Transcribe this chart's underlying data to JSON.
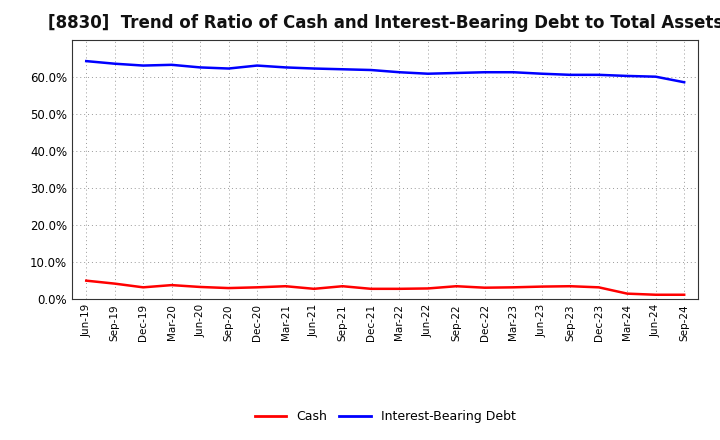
{
  "title": "[8830]  Trend of Ratio of Cash and Interest-Bearing Debt to Total Assets",
  "x_labels": [
    "Jun-19",
    "Sep-19",
    "Dec-19",
    "Mar-20",
    "Jun-20",
    "Sep-20",
    "Dec-20",
    "Mar-21",
    "Jun-21",
    "Sep-21",
    "Dec-21",
    "Mar-22",
    "Jun-22",
    "Sep-22",
    "Dec-22",
    "Mar-23",
    "Jun-23",
    "Sep-23",
    "Dec-23",
    "Mar-24",
    "Jun-24",
    "Sep-24"
  ],
  "cash": [
    5.0,
    4.2,
    3.2,
    3.8,
    3.3,
    3.0,
    3.2,
    3.5,
    2.8,
    3.5,
    2.8,
    2.8,
    2.9,
    3.5,
    3.1,
    3.2,
    3.4,
    3.5,
    3.2,
    1.5,
    1.2,
    1.2
  ],
  "ibd": [
    64.2,
    63.5,
    63.0,
    63.2,
    62.5,
    62.2,
    63.0,
    62.5,
    62.2,
    62.0,
    61.8,
    61.2,
    60.8,
    61.0,
    61.2,
    61.2,
    60.8,
    60.5,
    60.5,
    60.2,
    60.0,
    58.5
  ],
  "cash_color": "#ff0000",
  "ibd_color": "#0000ff",
  "background_color": "#ffffff",
  "plot_bg_color": "#ffffff",
  "grid_color": "#999999",
  "ylim": [
    0,
    70
  ],
  "yticks": [
    0,
    10,
    20,
    30,
    40,
    50,
    60
  ],
  "title_fontsize": 12,
  "legend_labels": [
    "Cash",
    "Interest-Bearing Debt"
  ]
}
